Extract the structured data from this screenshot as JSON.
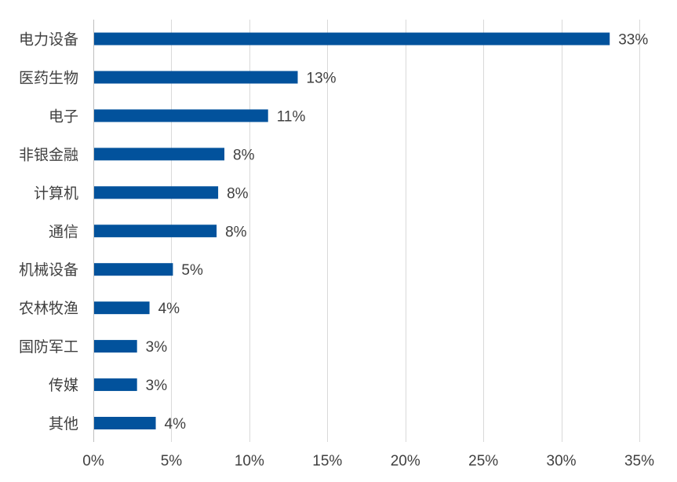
{
  "chart_data": {
    "type": "bar",
    "orientation": "horizontal",
    "categories": [
      "电力设备",
      "医药生物",
      "电子",
      "非银金融",
      "计算机",
      "通信",
      "机械设备",
      "农林牧渔",
      "国防军工",
      "传媒",
      "其他"
    ],
    "values": [
      33,
      13,
      11,
      8,
      8,
      8,
      5,
      4,
      3,
      3,
      4
    ],
    "plotted_values": [
      33.1,
      13.1,
      11.2,
      8.4,
      8.0,
      7.9,
      5.1,
      3.6,
      2.8,
      2.8,
      4.0
    ],
    "value_labels": [
      "33%",
      "13%",
      "11%",
      "8%",
      "8%",
      "8%",
      "5%",
      "4%",
      "3%",
      "3%",
      "4%"
    ],
    "x_ticks": [
      "0%",
      "5%",
      "10%",
      "15%",
      "20%",
      "25%",
      "30%",
      "35%"
    ],
    "xlim": [
      0,
      35
    ],
    "title": "",
    "xlabel": "",
    "ylabel": "",
    "grid": "vertical",
    "legend": "none",
    "bar_color": "#02529C"
  }
}
